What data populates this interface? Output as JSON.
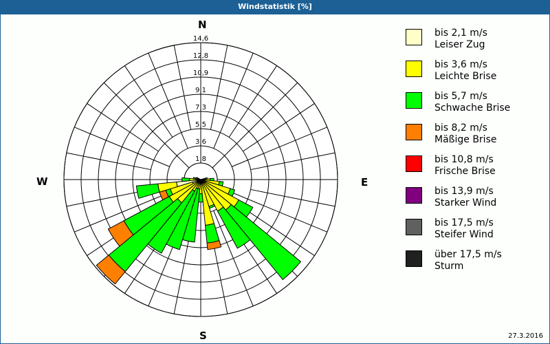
{
  "title": "Windstatistik [%]",
  "date": "27.3.2016",
  "compass": {
    "n": "N",
    "e": "E",
    "s": "S",
    "w": "W"
  },
  "legend": [
    {
      "speed": "bis 2,1 m/s",
      "name": "Leiser Zug",
      "color": "#ffffc8"
    },
    {
      "speed": "bis 3,6 m/s",
      "name": "Leichte Brise",
      "color": "#ffff00"
    },
    {
      "speed": "bis 5,7 m/s",
      "name": "Schwache Brise",
      "color": "#00ff00"
    },
    {
      "speed": "bis 8,2 m/s",
      "name": "Mäßige Brise",
      "color": "#ff8000"
    },
    {
      "speed": "bis 10,8 m/s",
      "name": "Frische Brise",
      "color": "#ff0000"
    },
    {
      "speed": "bis 13,9 m/s",
      "name": "Starker Wind",
      "color": "#800080"
    },
    {
      "speed": "bis 17,5 m/s",
      "name": "Steifer Wind",
      "color": "#606060"
    },
    {
      "speed": "über 17,5 m/s",
      "name": "Sturm",
      "color": "#202020"
    }
  ],
  "chart_data": {
    "type": "windrose",
    "title": "Windstatistik [%]",
    "radial_ticks": [
      "1,8",
      "3,6",
      "5,5",
      "7,3",
      "9,1",
      "10,9",
      "12,8",
      "14,6"
    ],
    "radial_max": 14.6,
    "sector_width_deg": 11.25,
    "series_names": [
      "bis 2,1 m/s",
      "bis 3,6 m/s",
      "bis 5,7 m/s",
      "bis 8,2 m/s",
      "bis 10,8 m/s",
      "bis 13,9 m/s",
      "bis 17,5 m/s",
      "über 17,5 m/s"
    ],
    "sectors": [
      {
        "dir": 90,
        "cum": [
          0.3,
          1.0,
          1.4
        ]
      },
      {
        "dir": 101.25,
        "cum": [
          0.4,
          2.0,
          2.4
        ]
      },
      {
        "dir": 112.5,
        "cum": [
          0.6,
          3.3,
          3.8
        ]
      },
      {
        "dir": 123.75,
        "cum": [
          0.5,
          4.6,
          6.3
        ]
      },
      {
        "dir": 135,
        "cum": [
          0.5,
          4.2,
          13.8
        ]
      },
      {
        "dir": 146.25,
        "cum": [
          0.4,
          3.8,
          8.3
        ]
      },
      {
        "dir": 157.5,
        "cum": [
          0.4,
          3.0,
          3.2
        ]
      },
      {
        "dir": 168.75,
        "cum": [
          0.4,
          4.9,
          6.8,
          7.5
        ]
      },
      {
        "dir": 180,
        "cum": [
          0.3,
          1.5,
          2.4
        ]
      },
      {
        "dir": 191.25,
        "cum": [
          0.3,
          1.0,
          6.7
        ]
      },
      {
        "dir": 202.5,
        "cum": [
          0.3,
          1.0,
          7.8
        ]
      },
      {
        "dir": 213.75,
        "cum": [
          0.3,
          1.4,
          8.9
        ]
      },
      {
        "dir": 225,
        "cum": [
          0.4,
          3.2,
          12.7,
          14.4
        ]
      },
      {
        "dir": 236.25,
        "cum": [
          0.5,
          3.8,
          9.3,
          11.2
        ]
      },
      {
        "dir": 247.5,
        "cum": [
          0.9,
          3.4,
          3.9,
          4.6
        ]
      },
      {
        "dir": 258.75,
        "cum": [
          2.6,
          4.6,
          6.9
        ]
      },
      {
        "dir": 270,
        "cum": [
          0.3,
          1.2,
          2.0
        ]
      },
      {
        "dir": 281.25,
        "cum": [
          0.3,
          0.6,
          0.8
        ]
      },
      {
        "dir": 292.5,
        "cum": [
          0.2,
          0.4,
          0.5
        ]
      },
      {
        "dir": 78.75,
        "cum": [
          0.2,
          0.5,
          0.7
        ]
      }
    ]
  }
}
